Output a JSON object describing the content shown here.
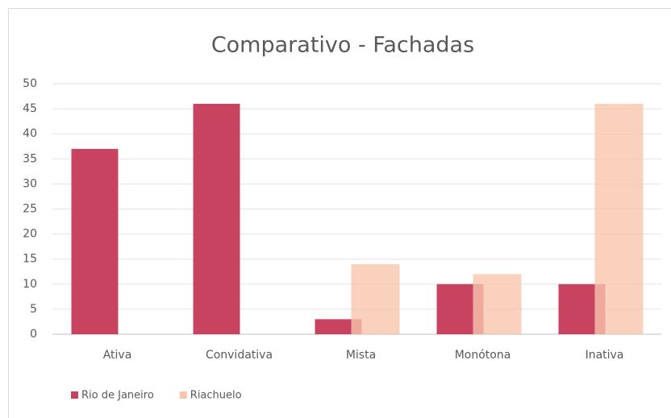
{
  "chart_data": {
    "type": "bar",
    "title": "Comparativo - Fachadas",
    "categories": [
      "Ativa",
      "Convidativa",
      "Mista",
      "Monótona",
      "Inativa"
    ],
    "series": [
      {
        "name": "Rio de Janeiro",
        "color": "#c8435f",
        "values": [
          37,
          46,
          3,
          10,
          10
        ]
      },
      {
        "name": "Riachuelo",
        "color": "#f7c6ac",
        "values": [
          0,
          0,
          14,
          12,
          46
        ]
      }
    ],
    "ylim": [
      0,
      50
    ],
    "yticks": [
      0,
      5,
      10,
      15,
      20,
      25,
      30,
      35,
      40,
      45,
      50
    ],
    "grid": true,
    "legend": "bottom-left"
  }
}
